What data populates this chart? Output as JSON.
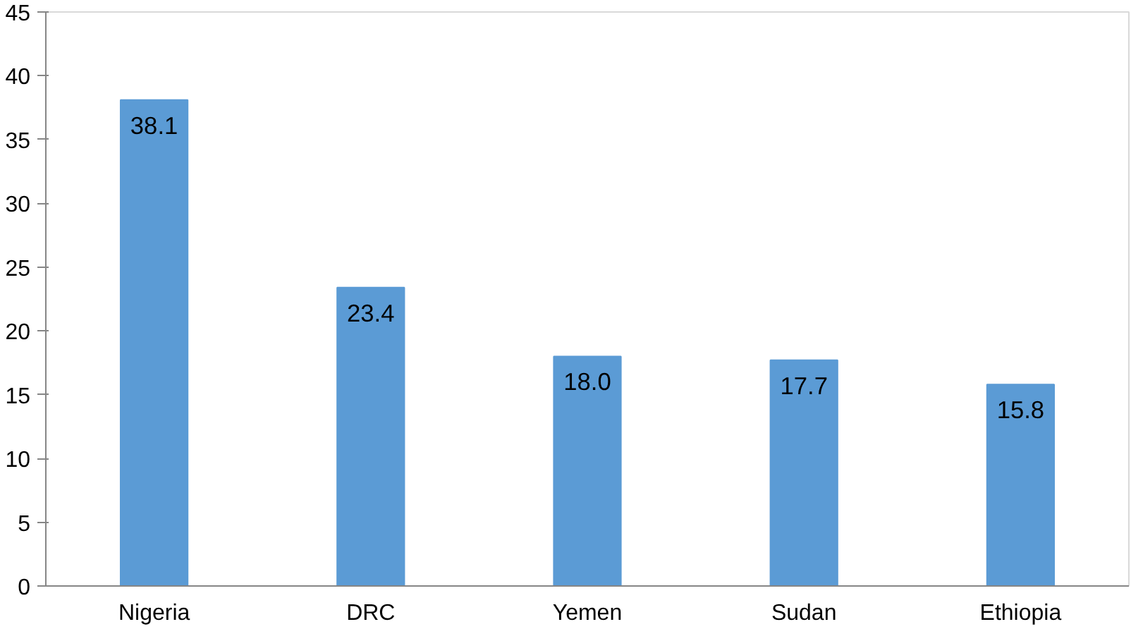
{
  "chart_data": {
    "type": "bar",
    "categories": [
      "Nigeria",
      "DRC",
      "Yemen",
      "Sudan",
      "Ethiopia"
    ],
    "values": [
      38.1,
      23.4,
      18.0,
      17.7,
      15.8
    ],
    "value_labels": [
      "38.1",
      "23.4",
      "18.0",
      "17.7",
      "15.8"
    ],
    "color": "#5b9bd5",
    "ylim": [
      0,
      45
    ],
    "yticks": [
      0,
      5,
      10,
      15,
      20,
      25,
      30,
      35,
      40,
      45
    ],
    "grid": false
  }
}
